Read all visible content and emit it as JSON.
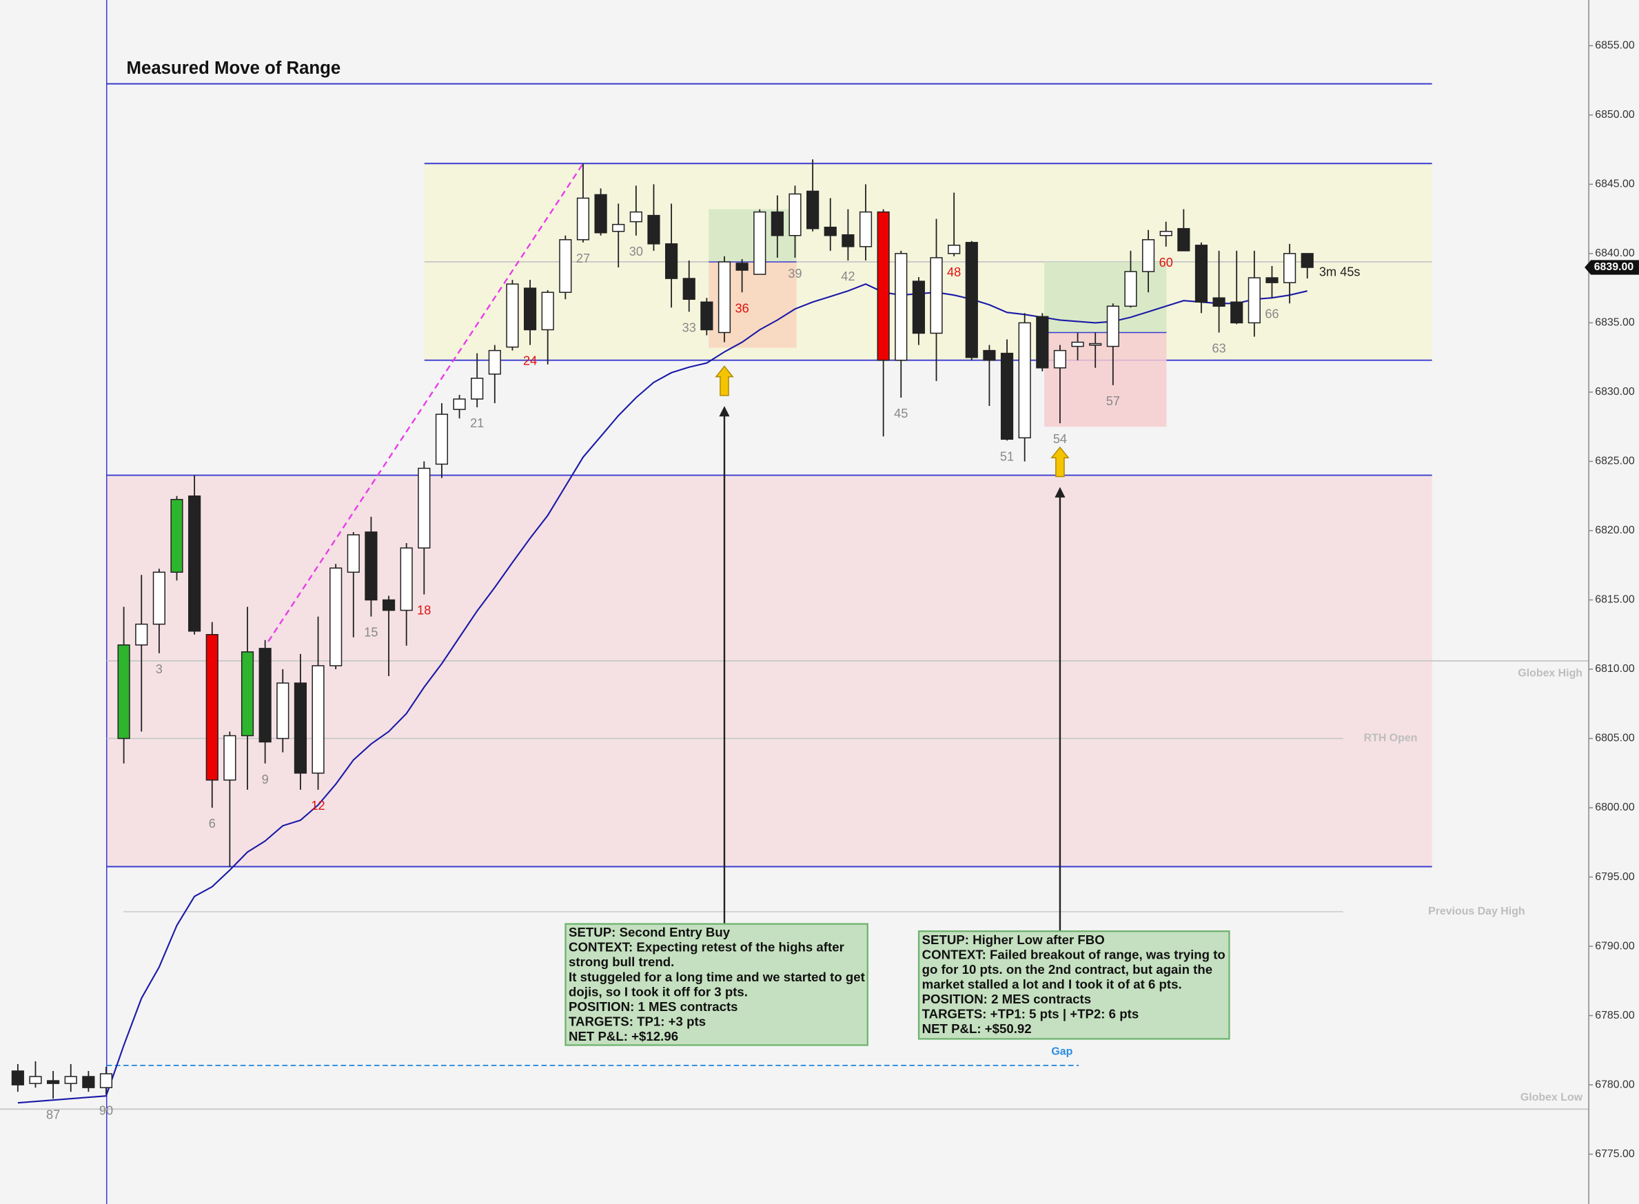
{
  "chart_data": {
    "type": "candlestick",
    "title": "Measured Move of Range",
    "categories": [
      null,
      null,
      "87",
      null,
      null,
      "90",
      null,
      null,
      "3",
      null,
      null,
      "6",
      null,
      null,
      "9",
      null,
      null,
      "12",
      null,
      null,
      "15",
      null,
      null,
      "18",
      null,
      null,
      "21",
      null,
      null,
      "24",
      null,
      null,
      "27",
      null,
      null,
      "30",
      null,
      null,
      "33",
      null,
      null,
      "36",
      null,
      null,
      "39",
      null,
      null,
      "42",
      null,
      null,
      "45",
      null,
      null,
      "48",
      null,
      null,
      "51",
      null,
      null,
      "54",
      null,
      null,
      "57",
      null,
      null,
      "60",
      null,
      null,
      "63",
      null,
      null,
      "66",
      null,
      null
    ],
    "category_colors": [
      null,
      null,
      "#888888",
      null,
      null,
      "#888888",
      null,
      null,
      "#888888",
      null,
      null,
      "#888888",
      null,
      null,
      "#888888",
      null,
      null,
      "#e01010",
      null,
      null,
      "#888888",
      null,
      null,
      "#e01010",
      null,
      null,
      "#888888",
      null,
      null,
      "#e01010",
      null,
      null,
      "#888888",
      null,
      null,
      "#888888",
      null,
      null,
      "#888888",
      null,
      null,
      "#e01010",
      null,
      null,
      "#888888",
      null,
      null,
      "#888888",
      null,
      null,
      "#888888",
      null,
      null,
      "#e01010",
      null,
      null,
      "#888888",
      null,
      null,
      "#888888",
      null,
      null,
      "#888888",
      null,
      null,
      "#e01010",
      null,
      null,
      "#888888",
      null,
      null,
      "#888888",
      null,
      null
    ],
    "open": [
      6781.0,
      6780.1,
      6780.3,
      6780.1,
      6780.6,
      6779.8,
      6805.0,
      6811.75,
      6813.25,
      6817.0,
      6822.5,
      6812.5,
      6802.0,
      6805.2,
      6811.5,
      6805.0,
      6809.0,
      6802.5,
      6810.25,
      6817.0,
      6819.9,
      6815.0,
      6814.25,
      6818.75,
      6824.8,
      6828.75,
      6829.5,
      6831.3,
      6833.25,
      6837.5,
      6834.5,
      6837.2,
      6841.0,
      6844.25,
      6841.6,
      6842.3,
      6842.75,
      6840.7,
      6838.2,
      6836.5,
      6834.3,
      6839.3,
      6838.5,
      6843.0,
      6841.3,
      6844.5,
      6841.9,
      6841.35,
      6840.5,
      6843.0,
      6832.3,
      6838.0,
      6834.25,
      6840.0,
      6840.8,
      6833.0,
      6832.8,
      6826.7,
      6835.45,
      6831.75,
      6833.3,
      6833.4,
      6833.3,
      6836.2,
      6838.7,
      6841.3,
      6841.8,
      6840.6,
      6836.8,
      6836.5,
      6835.0,
      6838.25,
      6837.9,
      6840.0
    ],
    "high": [
      6781.5,
      6781.7,
      6781.0,
      6781.5,
      6781.0,
      6781.3,
      6814.5,
      6816.8,
      6817.25,
      6822.5,
      6824.0,
      6813.4,
      6805.5,
      6814.5,
      6812.1,
      6810.0,
      6811.1,
      6813.8,
      6817.6,
      6819.9,
      6821.0,
      6815.3,
      6819.1,
      6825.0,
      6829.2,
      6829.8,
      6832.8,
      6833.4,
      6838.1,
      6838.1,
      6837.35,
      6841.3,
      6846.5,
      6844.7,
      6843.6,
      6844.9,
      6845.0,
      6843.6,
      6839.5,
      6836.8,
      6839.8,
      6839.6,
      6843.2,
      6844.2,
      6844.9,
      6846.8,
      6844.0,
      6843.2,
      6845.0,
      6843.2,
      6840.2,
      6838.3,
      6842.5,
      6844.4,
      6840.9,
      6833.4,
      6833.8,
      6835.7,
      6835.7,
      6833.4,
      6834.3,
      6834.3,
      6836.4,
      6840.2,
      6841.7,
      6842.3,
      6843.2,
      6840.8,
      6840.2,
      6840.2,
      6840.2,
      6839.1,
      6840.7,
      6840.0
    ],
    "low": [
      6779.5,
      6779.8,
      6779.0,
      6779.5,
      6779.5,
      6779.3,
      6803.2,
      6805.5,
      6811.15,
      6816.4,
      6812.5,
      6800.0,
      6795.7,
      6801.3,
      6803.2,
      6804.0,
      6801.3,
      6801.3,
      6810.0,
      6812.3,
      6813.8,
      6809.5,
      6811.7,
      6815.4,
      6823.8,
      6828.1,
      6828.9,
      6829.2,
      6833.0,
      6833.4,
      6832.0,
      6836.7,
      6840.8,
      6841.3,
      6839.0,
      6841.3,
      6840.2,
      6836.1,
      6835.8,
      6834.1,
      6833.6,
      6837.2,
      6838.5,
      6839.7,
      6839.7,
      6841.6,
      6840.2,
      6839.5,
      6839.5,
      6826.8,
      6829.6,
      6833.4,
      6830.8,
      6839.8,
      6832.3,
      6829.0,
      6826.5,
      6825.0,
      6831.5,
      6827.75,
      6832.3,
      6831.75,
      6830.5,
      6836.1,
      6837.2,
      6840.5,
      6840.2,
      6835.7,
      6834.3,
      6834.9,
      6834.0,
      6836.8,
      6836.4,
      6838.2
    ],
    "close": [
      6780.0,
      6780.6,
      6780.1,
      6780.6,
      6779.8,
      6780.8,
      6811.75,
      6813.25,
      6817.0,
      6822.25,
      6812.75,
      6802.0,
      6805.2,
      6811.25,
      6804.75,
      6809.0,
      6802.5,
      6810.25,
      6817.3,
      6819.7,
      6815.0,
      6814.25,
      6818.75,
      6824.5,
      6828.4,
      6829.5,
      6831.0,
      6833.0,
      6837.8,
      6834.5,
      6837.2,
      6841.0,
      6844.0,
      6841.5,
      6842.1,
      6843.0,
      6840.7,
      6838.2,
      6836.7,
      6834.5,
      6839.4,
      6838.8,
      6843.0,
      6841.3,
      6844.3,
      6841.8,
      6841.3,
      6840.5,
      6843.0,
      6832.3,
      6840.0,
      6834.25,
      6839.7,
      6840.6,
      6832.5,
      6832.3,
      6826.6,
      6835.0,
      6831.75,
      6833.0,
      6833.6,
      6833.5,
      6836.2,
      6838.7,
      6841.0,
      6841.6,
      6840.2,
      6836.5,
      6836.2,
      6835.0,
      6838.25,
      6837.9,
      6840.0,
      6839.0
    ],
    "candle_colors": [
      "#222222",
      "#ffffff",
      "#222222",
      "#ffffff",
      "#222222",
      "#ffffff",
      "#2db52d",
      "#ffffff",
      "#ffffff",
      "#2db52d",
      "#222222",
      "#ee0000",
      "#ffffff",
      "#2db52d",
      "#222222",
      "#ffffff",
      "#222222",
      "#ffffff",
      "#ffffff",
      "#ffffff",
      "#222222",
      "#222222",
      "#ffffff",
      "#ffffff",
      "#ffffff",
      "#ffffff",
      "#ffffff",
      "#ffffff",
      "#ffffff",
      "#222222",
      "#ffffff",
      "#ffffff",
      "#ffffff",
      "#222222",
      "#ffffff",
      "#ffffff",
      "#222222",
      "#222222",
      "#222222",
      "#222222",
      "#ffffff",
      "#222222",
      "#ffffff",
      "#222222",
      "#ffffff",
      "#222222",
      "#222222",
      "#222222",
      "#ffffff",
      "#ee0000",
      "#ffffff",
      "#222222",
      "#ffffff",
      "#ffffff",
      "#222222",
      "#222222",
      "#222222",
      "#ffffff",
      "#222222",
      "#ffffff",
      "#ffffff",
      "#ffffff",
      "#ffffff",
      "#ffffff",
      "#ffffff",
      "#ffffff",
      "#222222",
      "#222222",
      "#222222",
      "#222222",
      "#ffffff",
      "#222222",
      "#ffffff",
      "#222222"
    ],
    "ema": {
      "color": "#1a1aa8",
      "values": [
        6778.7,
        6778.8,
        6778.9,
        6779.0,
        6779.1,
        6779.2,
        6782.85,
        6786.25,
        6788.5,
        6791.5,
        6793.6,
        6794.3,
        6795.5,
        6796.8,
        6797.6,
        6798.7,
        6799.1,
        6800.2,
        6801.7,
        6803.45,
        6804.6,
        6805.5,
        6806.8,
        6808.7,
        6810.4,
        6812.3,
        6814.2,
        6815.9,
        6817.7,
        6819.45,
        6821.1,
        6823.2,
        6825.3,
        6826.8,
        6828.3,
        6829.6,
        6830.7,
        6831.4,
        6831.8,
        6832.1,
        6832.9,
        6833.6,
        6834.5,
        6835.2,
        6836.0,
        6836.5,
        6836.9,
        6837.3,
        6837.8,
        6837.2,
        6837.0,
        6837.1,
        6837.2,
        6837.0,
        6836.7,
        6836.3,
        6835.75,
        6835.6,
        6835.4,
        6835.2,
        6835.1,
        6835.0,
        6835.1,
        6835.4,
        6835.8,
        6836.2,
        6836.6,
        6836.5,
        6836.4,
        6836.4,
        6836.7,
        6836.8,
        6837.0,
        6837.3
      ]
    },
    "ylim": [
      6771.4,
      6858.3
    ],
    "yticks": [
      {
        "value": 6855,
        "label": "6855.00"
      },
      {
        "value": 6850,
        "label": "6850.00"
      },
      {
        "value": 6845,
        "label": "6845.00"
      },
      {
        "value": 6840,
        "label": "6840.00"
      },
      {
        "value": 6835,
        "label": "6835.00"
      },
      {
        "value": 6830,
        "label": "6830.00"
      },
      {
        "value": 6825,
        "label": "6825.00"
      },
      {
        "value": 6820,
        "label": "6820.00"
      },
      {
        "value": 6815,
        "label": "6815.00"
      },
      {
        "value": 6810,
        "label": "6810.00"
      },
      {
        "value": 6805,
        "label": "6805.00"
      },
      {
        "value": 6800,
        "label": "6800.00"
      },
      {
        "value": 6795,
        "label": "6795.00"
      },
      {
        "value": 6790,
        "label": "6790.00"
      },
      {
        "value": 6785,
        "label": "6785.00"
      },
      {
        "value": 6780,
        "label": "6780.00"
      },
      {
        "value": 6775,
        "label": "6775.00"
      }
    ],
    "zones": [
      {
        "from": 6832.3,
        "to": 6846.5,
        "color": "#f5f5dc"
      },
      {
        "from": 6795.75,
        "to": 6824.0,
        "color": "#f5e1e4"
      }
    ],
    "levels": [
      {
        "value": 6852.25,
        "color": "#3a3ad0"
      },
      {
        "value": 6846.5,
        "color": "#3a3ad0"
      },
      {
        "value": 6832.3,
        "color": "#3a3ad0"
      },
      {
        "value": 6824.0,
        "color": "#3a3ad0"
      },
      {
        "value": 6795.75,
        "color": "#3a3ad0"
      },
      {
        "value": 6839.4,
        "color": "#c8c8c8"
      },
      {
        "value": 6810.6,
        "label": "Globex High",
        "color": "#c8c8c8"
      },
      {
        "value": 6805.0,
        "label": "RTH Open",
        "color": "#c8c8c8"
      },
      {
        "value": 6792.5,
        "label": "Previous Day High",
        "color": "#d0d0d0"
      },
      {
        "value": 6778.25,
        "label": "Globex Low",
        "color": "#c8c8c8"
      },
      {
        "value": 6781.4,
        "label": "Gap",
        "color": "#2a8ce0",
        "dashed": true
      }
    ],
    "trades": [
      {
        "target": 6843.2,
        "entry": 6839.4,
        "stop": 6833.2,
        "target_color": "#d3e6c3",
        "stop_color": "#f8d4bc"
      },
      {
        "target": 6839.4,
        "entry": 6834.3,
        "stop": 6827.5,
        "target_color": "#d3e6c3",
        "stop_color": "#f5cccf"
      }
    ],
    "measured_move": {
      "from": 6812.0,
      "to": 6846.5,
      "color": "#e83ee8"
    },
    "current_price": {
      "value": 6839.0,
      "label": "6839.00"
    },
    "timer": "3m 45s",
    "annotations": [
      {
        "lines": [
          "SETUP: Second Entry Buy",
          "CONTEXT: Expecting retest of the highs after",
          "strong bull trend.",
          "It stuggeled for a long time and we started to get",
          "dojis, so I took it off for 3 pts.",
          "POSITION: 1 MES contracts",
          "TARGETS: TP1: +3 pts",
          "NET P&L: +$12.96"
        ]
      },
      {
        "lines": [
          "SETUP: Higher Low after FBO",
          "CONTEXT: Failed breakout of range, was trying to",
          "go for 10 pts. on the 2nd contract, but again the",
          "market stalled a lot and I took it of at 6 pts.",
          "POSITION: 2 MES contracts",
          "TARGETS: +TP1: 5 pts | +TP2: 6 pts",
          "NET P&L: +$50.92"
        ]
      }
    ]
  }
}
